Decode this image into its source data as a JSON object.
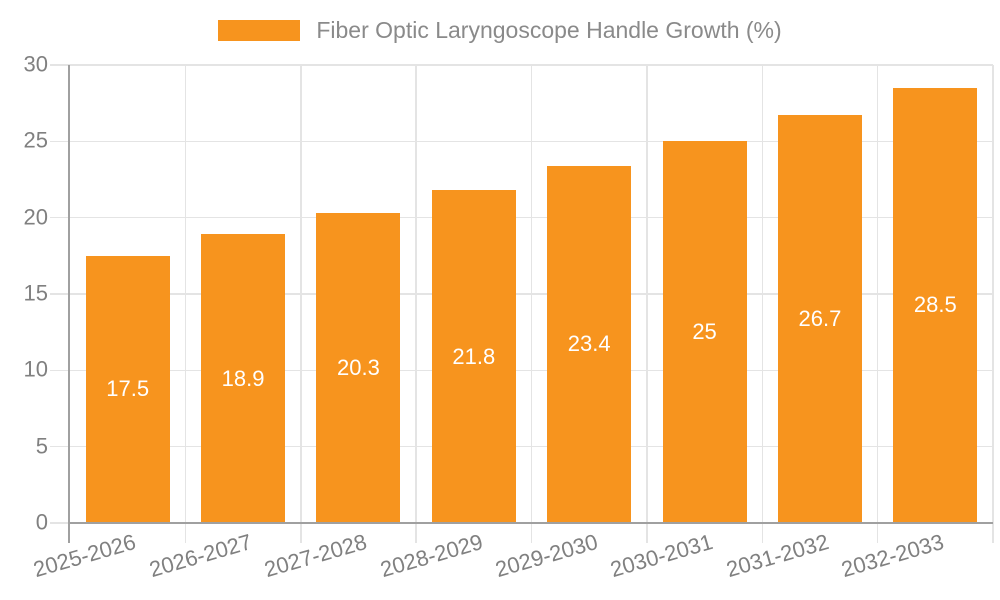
{
  "chart_data": {
    "type": "bar",
    "title": "Fiber Optic Laryngoscope Handle Growth (%)",
    "categories": [
      "2025-2026",
      "2026-2027",
      "2027-2028",
      "2028-2029",
      "2029-2030",
      "2030-2031",
      "2031-2032",
      "2032-2033"
    ],
    "values": [
      17.5,
      18.9,
      20.3,
      21.8,
      23.4,
      25,
      26.7,
      28.5
    ],
    "xlabel": "",
    "ylabel": "",
    "ylim": [
      0,
      30
    ],
    "y_ticks": [
      0,
      5,
      10,
      15,
      20,
      25,
      30
    ],
    "grid": true,
    "legend_position": "top-center",
    "value_labels_inside_bars": true
  },
  "colors": {
    "bar": "#f7941e",
    "grid": "#e4e4e4",
    "axis": "#a0a0a0",
    "tick_text": "#808080",
    "value_text": "#ffffff",
    "legend_text": "#8a8a8a",
    "background": "#ffffff"
  }
}
